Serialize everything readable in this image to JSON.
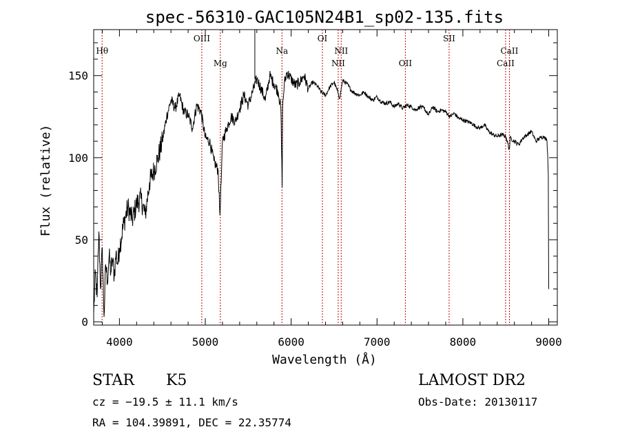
{
  "chart_data": {
    "type": "line",
    "title": "spec-56310-GAC105N24B1_sp02-135.fits",
    "xlabel": "Wavelength (Å)",
    "ylabel": "Flux (relative)",
    "xlim": [
      3700,
      9100
    ],
    "ylim": [
      -2,
      178
    ],
    "xticks": [
      4000,
      5000,
      6000,
      7000,
      8000,
      9000
    ],
    "yticks": [
      0,
      50,
      100,
      150
    ],
    "grid": false,
    "line_color": "#000000",
    "marker_color": "#c00000",
    "series": [
      {
        "x": [
          3700,
          3720,
          3740,
          3760,
          3780,
          3800,
          3820,
          3840,
          3860,
          3880,
          3900,
          3920,
          3940,
          3960,
          3980,
          4000,
          4050,
          4100,
          4150,
          4200,
          4250,
          4300,
          4350,
          4400,
          4450,
          4500,
          4550,
          4600,
          4650,
          4700,
          4750,
          4800,
          4850,
          4900,
          4950,
          5000,
          5050,
          5100,
          5150,
          5170,
          5185,
          5200,
          5250,
          5300,
          5350,
          5400,
          5450,
          5500,
          5550,
          5600,
          5650,
          5700,
          5750,
          5800,
          5850,
          5880,
          5895,
          5900,
          5920,
          5950,
          6000,
          6050,
          6100,
          6150,
          6200,
          6250,
          6300,
          6350,
          6400,
          6450,
          6500,
          6550,
          6563,
          6600,
          6650,
          6700,
          6750,
          6800,
          6850,
          6900,
          6950,
          7000,
          7050,
          7100,
          7150,
          7200,
          7250,
          7300,
          7350,
          7400,
          7450,
          7500,
          7550,
          7600,
          7650,
          7700,
          7750,
          7800,
          7850,
          7900,
          7950,
          8000,
          8050,
          8100,
          8150,
          8200,
          8250,
          8300,
          8350,
          8400,
          8450,
          8500,
          8542,
          8550,
          8600,
          8650,
          8700,
          8750,
          8800,
          8850,
          8900,
          8950,
          8980,
          8990,
          8995,
          9000
        ],
        "y": [
          5,
          30,
          15,
          55,
          20,
          45,
          3,
          35,
          25,
          40,
          30,
          38,
          28,
          42,
          35,
          45,
          60,
          70,
          62,
          72,
          75,
          65,
          85,
          92,
          100,
          110,
          125,
          135,
          130,
          138,
          128,
          126,
          118,
          132,
          128,
          112,
          110,
          98,
          92,
          65,
          85,
          110,
          118,
          125,
          122,
          130,
          138,
          132,
          140,
          148,
          142,
          135,
          150,
          145,
          140,
          130,
          82,
          130,
          145,
          152,
          148,
          144,
          146,
          150,
          142,
          146,
          144,
          140,
          138,
          143,
          146,
          139,
          136,
          147,
          145,
          141,
          139,
          138,
          140,
          137,
          135,
          137,
          134,
          133,
          134,
          131,
          133,
          130,
          132,
          131,
          129,
          131,
          130,
          126,
          131,
          128,
          129,
          128,
          125,
          127,
          124,
          123,
          122,
          121,
          119,
          118,
          120,
          116,
          114,
          113,
          114,
          113,
          105,
          112,
          110,
          108,
          112,
          114,
          116,
          110,
          112,
          113,
          110,
          98,
          90,
          20
        ],
        "values_note": ""
      }
    ],
    "line_markers": [
      {
        "label": "Hθ",
        "x": 3798,
        "row": 1
      },
      {
        "label": "OIII",
        "x": 4959,
        "row": 0
      },
      {
        "label": "Mg",
        "x": 5175,
        "row": 2
      },
      {
        "label": "Na",
        "x": 5893,
        "row": 1
      },
      {
        "label": "OI",
        "x": 6364,
        "row": 0
      },
      {
        "label": "NII",
        "x": 6548,
        "row": 2
      },
      {
        "label": "NII",
        "x": 6583,
        "row": 1
      },
      {
        "label": "OII",
        "x": 7330,
        "row": 2
      },
      {
        "label": "SII",
        "x": 7840,
        "row": 0
      },
      {
        "label": "CaII",
        "x": 8498,
        "row": 2
      },
      {
        "label": "CaII",
        "x": 8542,
        "row": 1
      }
    ],
    "solid_marker_x": 5577
  },
  "footer": {
    "object_class": "STAR",
    "subclass": "K5",
    "cz": "cz = −19.5 ± 11.1 km/s",
    "coords": "RA = 104.39891, DEC =  22.35774",
    "survey": "LAMOST DR2",
    "obs_date": "Obs-Date: 20130117"
  }
}
